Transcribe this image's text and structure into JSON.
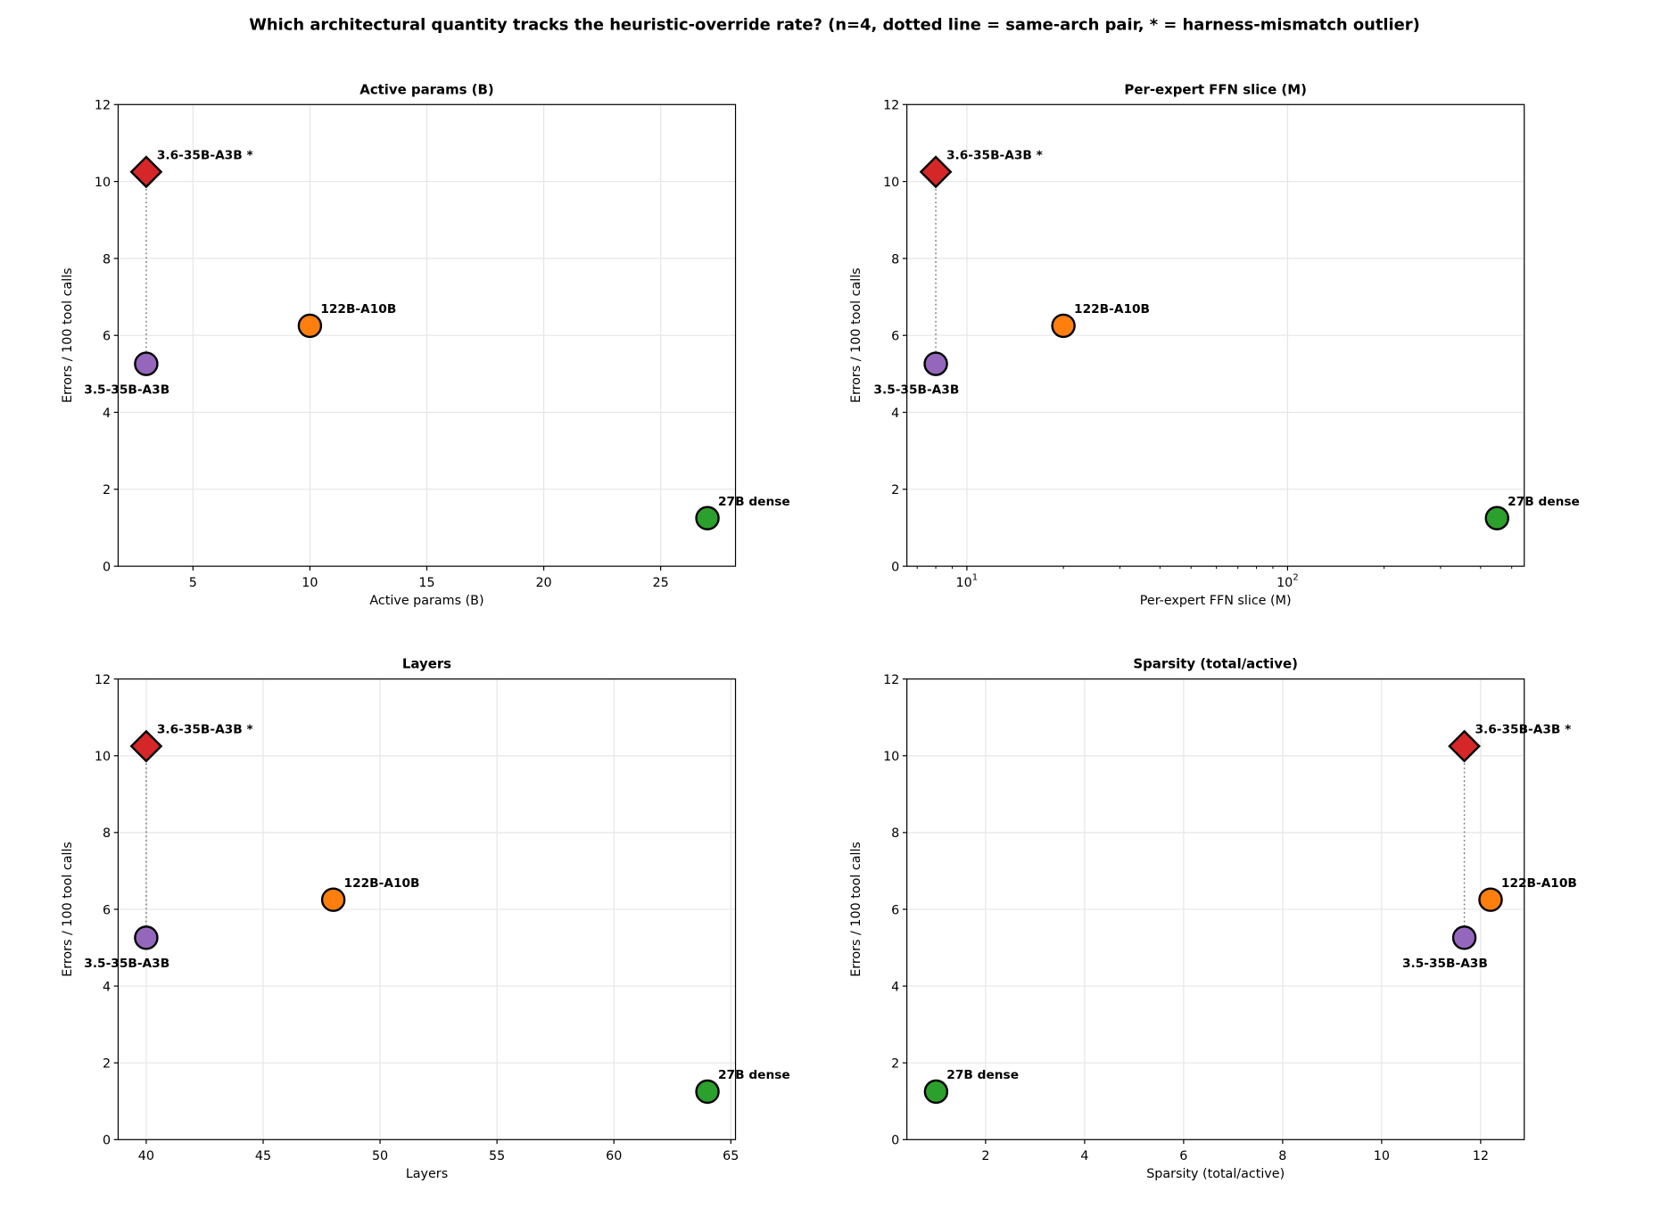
{
  "suptitle": "Which architectural quantity tracks the heuristic-override rate? (n=4, dotted line = same-arch pair, * = harness-mismatch outlier)",
  "chart_data": [
    {
      "type": "scatter",
      "title": "Active params (B)",
      "xlabel": "Active params (B)",
      "ylabel": "Errors / 100 tool calls",
      "xscale": "linear",
      "xlim": [
        1.8,
        28.2
      ],
      "ylim": [
        0,
        12
      ],
      "xticks": [
        5,
        10,
        15,
        20,
        25
      ],
      "yticks": [
        0,
        2,
        4,
        6,
        8,
        10,
        12
      ],
      "grid": true,
      "points": [
        {
          "label": "3.6-35B-A3B *",
          "x": 3,
          "y": 10.25,
          "marker": "diamond",
          "color": "#d62728"
        },
        {
          "label": "3.5-35B-A3B",
          "x": 3,
          "y": 5.26,
          "marker": "circle",
          "color": "#9467bd"
        },
        {
          "label": "122B-A10B",
          "x": 10,
          "y": 6.25,
          "marker": "circle",
          "color": "#ff7f0e"
        },
        {
          "label": "27B dense",
          "x": 27,
          "y": 1.25,
          "marker": "circle",
          "color": "#2ca02c"
        }
      ]
    },
    {
      "type": "scatter",
      "title": "Per-expert FFN slice (M)",
      "xlabel": "Per-expert FFN slice (M)",
      "ylabel": "Errors / 100 tool calls",
      "xscale": "log",
      "xlim": [
        6.5,
        547
      ],
      "ylim": [
        0,
        12
      ],
      "xticks": [
        10,
        100
      ],
      "xticklabels": [
        "10^1",
        "10^2"
      ],
      "yticks": [
        0,
        2,
        4,
        6,
        8,
        10,
        12
      ],
      "grid": true,
      "points": [
        {
          "label": "3.6-35B-A3B *",
          "x": 8,
          "y": 10.25,
          "marker": "diamond",
          "color": "#d62728"
        },
        {
          "label": "3.5-35B-A3B",
          "x": 8,
          "y": 5.26,
          "marker": "circle",
          "color": "#9467bd"
        },
        {
          "label": "122B-A10B",
          "x": 20,
          "y": 6.25,
          "marker": "circle",
          "color": "#ff7f0e"
        },
        {
          "label": "27B dense",
          "x": 450,
          "y": 1.25,
          "marker": "circle",
          "color": "#2ca02c"
        }
      ]
    },
    {
      "type": "scatter",
      "title": "Layers",
      "xlabel": "Layers",
      "ylabel": "Errors / 100 tool calls",
      "xscale": "linear",
      "xlim": [
        38.8,
        65.2
      ],
      "ylim": [
        0,
        12
      ],
      "xticks": [
        40,
        45,
        50,
        55,
        60,
        65
      ],
      "yticks": [
        0,
        2,
        4,
        6,
        8,
        10,
        12
      ],
      "grid": true,
      "points": [
        {
          "label": "3.6-35B-A3B *",
          "x": 40,
          "y": 10.25,
          "marker": "diamond",
          "color": "#d62728"
        },
        {
          "label": "3.5-35B-A3B",
          "x": 40,
          "y": 5.26,
          "marker": "circle",
          "color": "#9467bd"
        },
        {
          "label": "122B-A10B",
          "x": 48,
          "y": 6.25,
          "marker": "circle",
          "color": "#ff7f0e"
        },
        {
          "label": "27B dense",
          "x": 64,
          "y": 1.25,
          "marker": "circle",
          "color": "#2ca02c"
        }
      ]
    },
    {
      "type": "scatter",
      "title": "Sparsity (total/active)",
      "xlabel": "Sparsity (total/active)",
      "ylabel": "Errors / 100 tool calls",
      "xscale": "linear",
      "xlim": [
        0.41,
        12.88
      ],
      "ylim": [
        0,
        12
      ],
      "xticks": [
        2,
        4,
        6,
        8,
        10,
        12
      ],
      "yticks": [
        0,
        2,
        4,
        6,
        8,
        10,
        12
      ],
      "grid": true,
      "points": [
        {
          "label": "3.6-35B-A3B *",
          "x": 11.67,
          "y": 10.25,
          "marker": "diamond",
          "color": "#d62728"
        },
        {
          "label": "3.5-35B-A3B",
          "x": 11.67,
          "y": 5.26,
          "marker": "circle",
          "color": "#9467bd"
        },
        {
          "label": "122B-A10B",
          "x": 12.2,
          "y": 6.25,
          "marker": "circle",
          "color": "#ff7f0e"
        },
        {
          "label": "27B dense",
          "x": 1,
          "y": 1.25,
          "marker": "circle",
          "color": "#2ca02c"
        }
      ]
    }
  ]
}
